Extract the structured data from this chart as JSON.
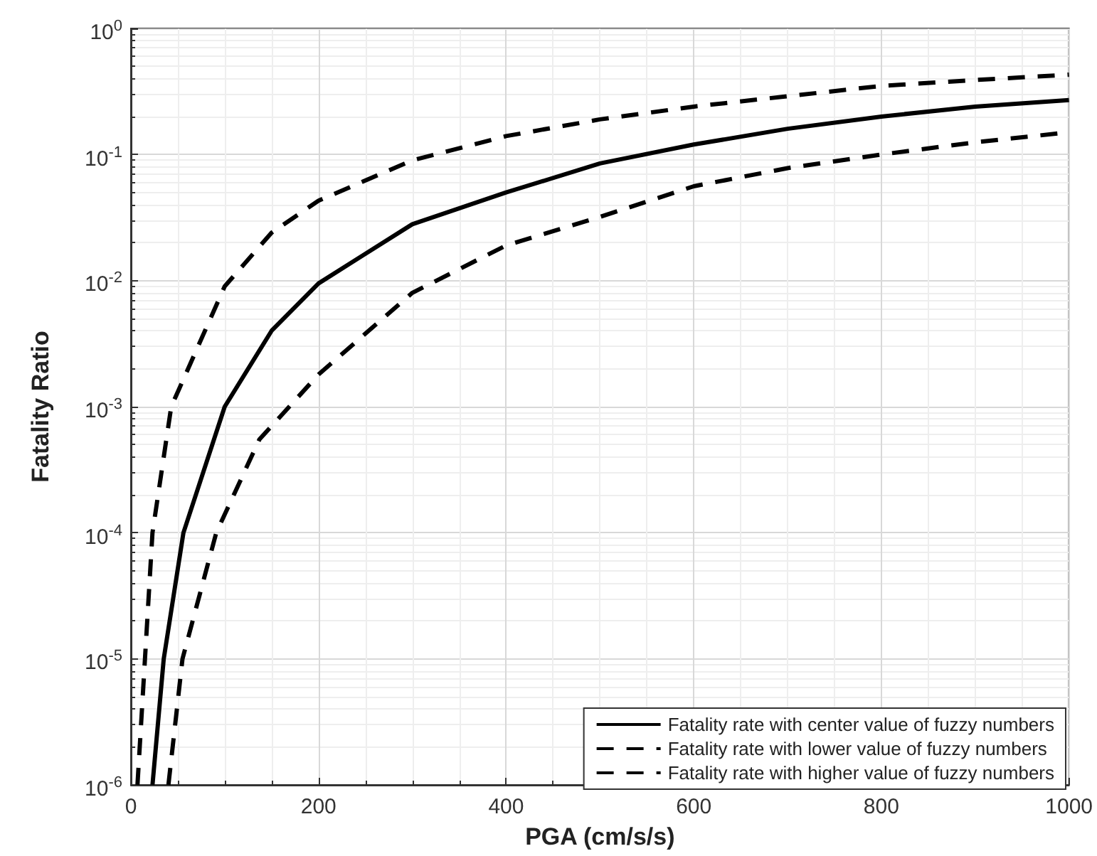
{
  "chart_data": {
    "type": "line",
    "xlabel": "PGA (cm/s/s)",
    "ylabel": "Fatality Ratio",
    "log": "y",
    "grid": true,
    "legend": "bottom right",
    "marker": "none",
    "xlim": [
      0,
      1000
    ],
    "xticks": [
      0,
      200,
      400,
      600,
      800,
      1000
    ],
    "ylim": [
      1e-06,
      1
    ],
    "yticks": [
      {
        "value": 1e-06,
        "label": "10$^{-6}$"
      },
      {
        "value": 1e-05,
        "label": "10$^{-5}$"
      },
      {
        "value": 0.0001,
        "label": "10$^{-4}$"
      },
      {
        "value": 0.001,
        "label": "10$^{-3}$"
      },
      {
        "value": 0.01,
        "label": "10$^{-2}$"
      },
      {
        "value": 0.1,
        "label": "10$^{-1}$"
      },
      {
        "value": 1,
        "label": "10$^{0}$"
      }
    ],
    "series": [
      {
        "name": "Fatality rate with center value of fuzzy numbers",
        "color": "#000000",
        "line_style": "solid",
        "x": [
          23,
          35,
          56,
          100,
          150,
          200,
          300,
          400,
          500,
          600,
          700,
          800,
          900,
          1000
        ],
        "values": [
          1e-06,
          1e-05,
          0.0001,
          0.001,
          0.004,
          0.0095,
          0.028,
          0.05,
          0.085,
          0.12,
          0.16,
          0.2,
          0.24,
          0.27
        ]
      },
      {
        "name": "Fatality rate with lower value of fuzzy numbers",
        "color": "#000000",
        "line_style": "dashed",
        "x": [
          40,
          55,
          91,
          137,
          200,
          300,
          400,
          500,
          600,
          700,
          800,
          900,
          1000
        ],
        "values": [
          1e-06,
          1e-05,
          0.0001,
          0.00055,
          0.0018,
          0.008,
          0.019,
          0.032,
          0.056,
          0.078,
          0.1,
          0.125,
          0.15
        ]
      },
      {
        "name": "Fatality rate with higher value of fuzzy numbers",
        "color": "#000000",
        "line_style": "dashed",
        "x": [
          7,
          15,
          23,
          43,
          100,
          150,
          200,
          300,
          400,
          500,
          600,
          700,
          800,
          900,
          1000
        ],
        "values": [
          1e-06,
          1e-05,
          0.0001,
          0.001,
          0.009,
          0.024,
          0.043,
          0.09,
          0.14,
          0.19,
          0.24,
          0.29,
          0.35,
          0.39,
          0.43
        ]
      }
    ]
  }
}
